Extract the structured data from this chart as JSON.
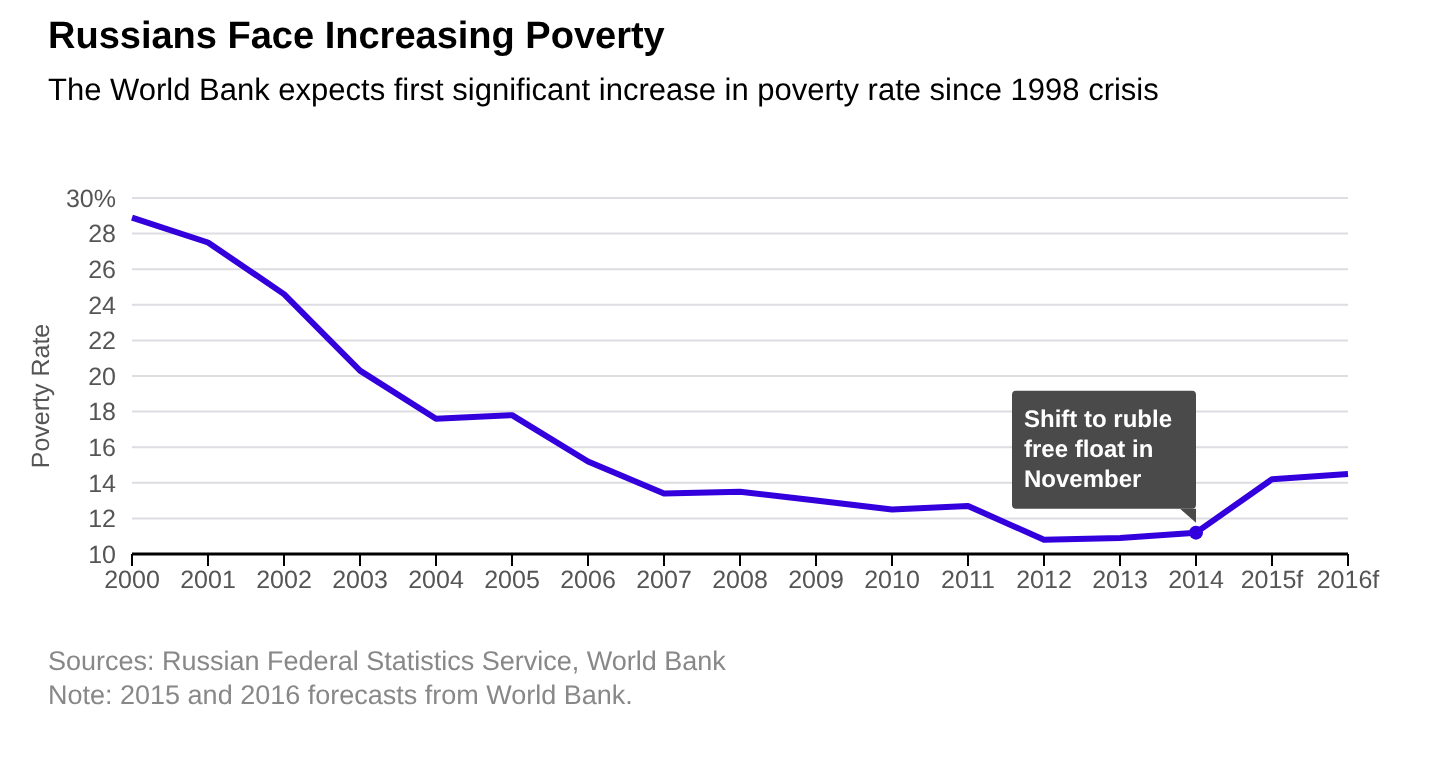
{
  "chart_data": {
    "type": "line",
    "title": "Russians Face Increasing Poverty",
    "subtitle": "The World Bank expects first significant increase in poverty rate since 1998 crisis",
    "ylabel": "Poverty Rate",
    "categories": [
      "2000",
      "2001",
      "2002",
      "2003",
      "2004",
      "2005",
      "2006",
      "2007",
      "2008",
      "2009",
      "2010",
      "2011",
      "2012",
      "2013",
      "2014",
      "2015f",
      "2016f"
    ],
    "series": [
      {
        "color": "#3300dd",
        "values": [
          28.9,
          27.5,
          24.6,
          20.3,
          17.6,
          17.8,
          15.2,
          13.4,
          13.5,
          13.0,
          12.5,
          12.7,
          10.8,
          10.9,
          11.2,
          14.2,
          14.5
        ]
      }
    ],
    "ylim": [
      10,
      30
    ],
    "yticks": [
      10,
      12,
      14,
      16,
      18,
      20,
      22,
      24,
      26,
      28,
      {
        "value": 30,
        "label": "30%"
      }
    ],
    "grid": "y",
    "marker": "none",
    "legend": false,
    "annotations": [
      {
        "text": "Shift to ruble free float in November",
        "x": "2014",
        "y": 11.2
      },
      "Sources: Russian Federal Statistics Service, World Bank",
      "Note: 2015 and 2016 forecasts from World Bank."
    ]
  }
}
